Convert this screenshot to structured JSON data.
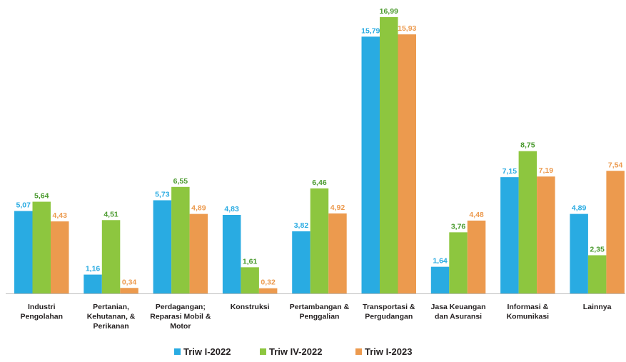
{
  "chart_data": {
    "type": "bar",
    "categories": [
      [
        "Industri",
        "Pengolahan"
      ],
      [
        "Pertanian,",
        "Kehutanan, &",
        "Perikanan"
      ],
      [
        "Perdagangan;",
        "Reparasi Mobil &",
        "Motor"
      ],
      [
        "Konstruksi"
      ],
      [
        "Pertambangan &",
        "Penggalian"
      ],
      [
        "Transportasi &",
        "Pergudangan"
      ],
      [
        "Jasa Keuangan",
        "dan Asuransi"
      ],
      [
        "Informasi &",
        "Komunikasi"
      ],
      [
        "Lainnya"
      ]
    ],
    "series": [
      {
        "name": "Triw I-2022",
        "color": "#29abe2",
        "values": [
          5.07,
          1.16,
          5.73,
          4.83,
          3.82,
          15.79,
          1.64,
          7.15,
          4.89
        ],
        "labels": [
          "5,07",
          "1,16",
          "5,73",
          "4,83",
          "3,82",
          "15,79",
          "1,64",
          "7,15",
          "4,89"
        ]
      },
      {
        "name": "Triw IV-2022",
        "color": "#8dc63f",
        "label_color": "#4a9a2e",
        "values": [
          5.64,
          4.51,
          6.55,
          1.61,
          6.46,
          16.99,
          3.76,
          8.75,
          2.35
        ],
        "labels": [
          "5,64",
          "4,51",
          "6,55",
          "1,61",
          "6,46",
          "16,99",
          "3,76",
          "8,75",
          "2,35"
        ]
      },
      {
        "name": "Triw I-2023",
        "color": "#ec9a4e",
        "values": [
          4.43,
          0.34,
          4.89,
          0.32,
          4.92,
          15.93,
          4.48,
          7.19,
          7.54
        ],
        "labels": [
          "4,43",
          "0,34",
          "4,89",
          "0,32",
          "4,92",
          "15,93",
          "4,48",
          "7,19",
          "7,54"
        ]
      }
    ],
    "ylim": [
      0,
      17
    ],
    "grid": false,
    "legend_position": "bottom"
  }
}
